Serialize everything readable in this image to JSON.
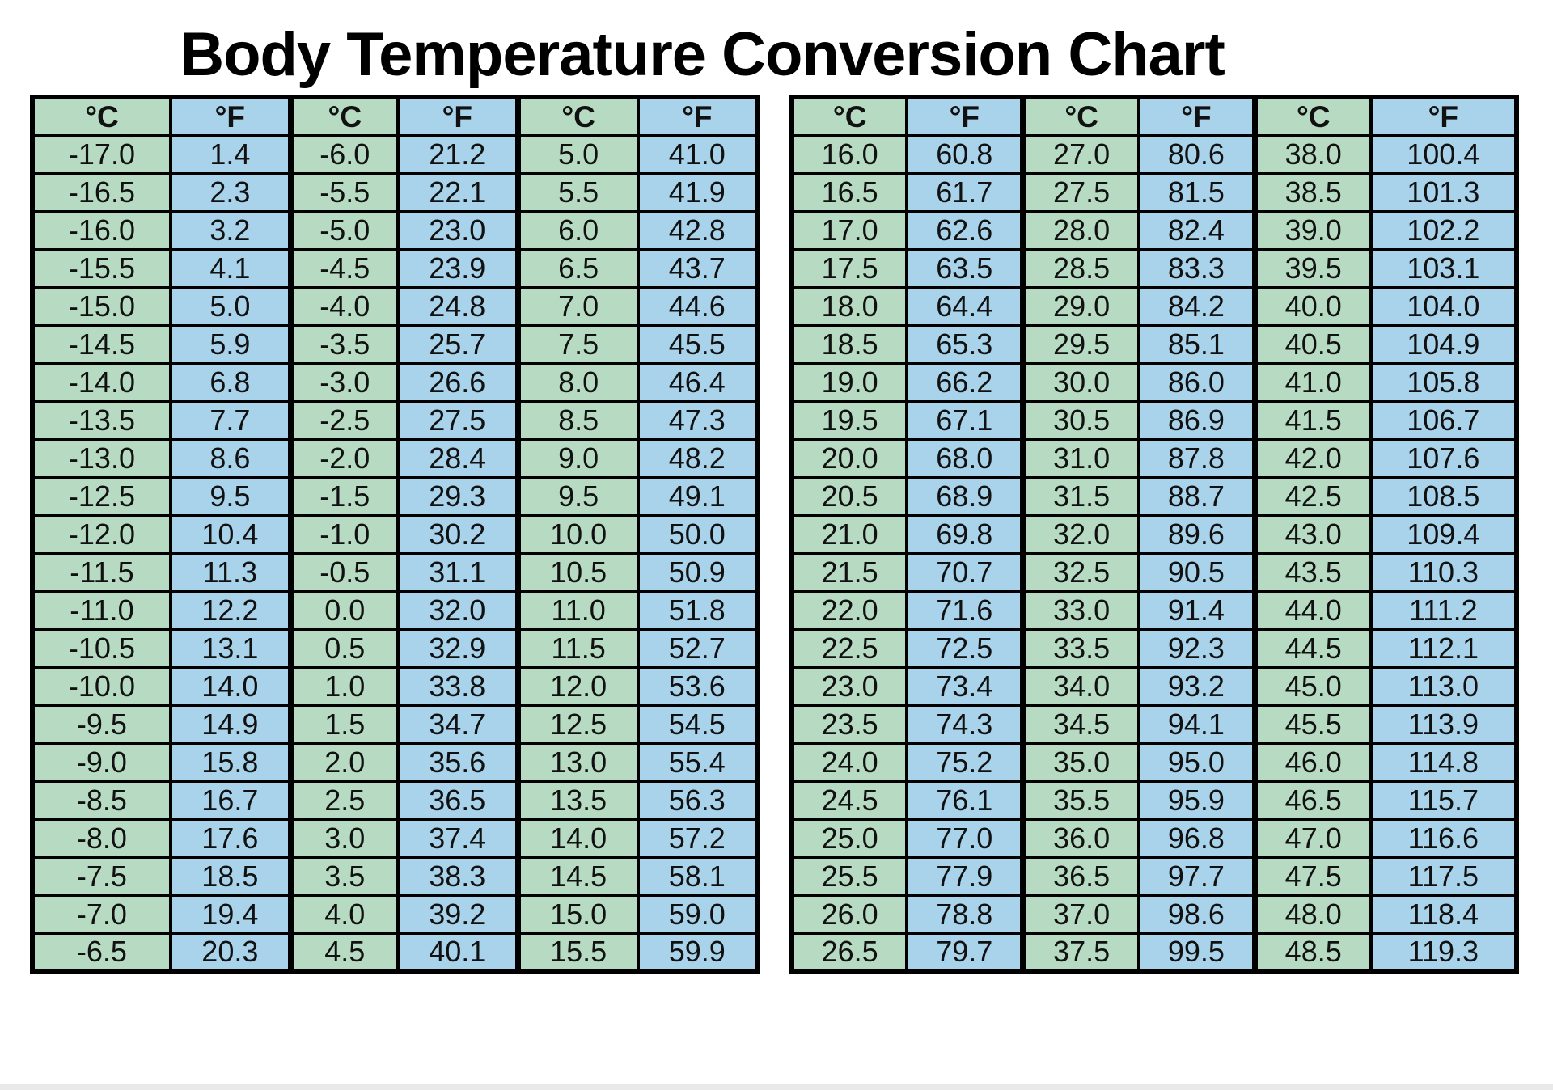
{
  "page": {
    "title": "Body Temperature Conversion Chart"
  },
  "colors": {
    "celsius_bg": "#b7dbc2",
    "fahrenheit_bg": "#a8d3ea",
    "table_border": "#000000",
    "cell_text": "#111111",
    "title_text": "#000000",
    "page_bg": "#ffffff",
    "bottom_strip": "#e9e9e9"
  },
  "chart_data": {
    "type": "table",
    "title": "Body Temperature Conversion Chart",
    "column_headers": [
      "°C",
      "°F",
      "°C",
      "°F",
      "°C",
      "°F"
    ],
    "tables": [
      {
        "name": "left-table",
        "rows": [
          [
            "-17.0",
            "1.4",
            "-6.0",
            "21.2",
            "5.0",
            "41.0"
          ],
          [
            "-16.5",
            "2.3",
            "-5.5",
            "22.1",
            "5.5",
            "41.9"
          ],
          [
            "-16.0",
            "3.2",
            "-5.0",
            "23.0",
            "6.0",
            "42.8"
          ],
          [
            "-15.5",
            "4.1",
            "-4.5",
            "23.9",
            "6.5",
            "43.7"
          ],
          [
            "-15.0",
            "5.0",
            "-4.0",
            "24.8",
            "7.0",
            "44.6"
          ],
          [
            "-14.5",
            "5.9",
            "-3.5",
            "25.7",
            "7.5",
            "45.5"
          ],
          [
            "-14.0",
            "6.8",
            "-3.0",
            "26.6",
            "8.0",
            "46.4"
          ],
          [
            "-13.5",
            "7.7",
            "-2.5",
            "27.5",
            "8.5",
            "47.3"
          ],
          [
            "-13.0",
            "8.6",
            "-2.0",
            "28.4",
            "9.0",
            "48.2"
          ],
          [
            "-12.5",
            "9.5",
            "-1.5",
            "29.3",
            "9.5",
            "49.1"
          ],
          [
            "-12.0",
            "10.4",
            "-1.0",
            "30.2",
            "10.0",
            "50.0"
          ],
          [
            "-11.5",
            "11.3",
            "-0.5",
            "31.1",
            "10.5",
            "50.9"
          ],
          [
            "-11.0",
            "12.2",
            "0.0",
            "32.0",
            "11.0",
            "51.8"
          ],
          [
            "-10.5",
            "13.1",
            "0.5",
            "32.9",
            "11.5",
            "52.7"
          ],
          [
            "-10.0",
            "14.0",
            "1.0",
            "33.8",
            "12.0",
            "53.6"
          ],
          [
            "-9.5",
            "14.9",
            "1.5",
            "34.7",
            "12.5",
            "54.5"
          ],
          [
            "-9.0",
            "15.8",
            "2.0",
            "35.6",
            "13.0",
            "55.4"
          ],
          [
            "-8.5",
            "16.7",
            "2.5",
            "36.5",
            "13.5",
            "56.3"
          ],
          [
            "-8.0",
            "17.6",
            "3.0",
            "37.4",
            "14.0",
            "57.2"
          ],
          [
            "-7.5",
            "18.5",
            "3.5",
            "38.3",
            "14.5",
            "58.1"
          ],
          [
            "-7.0",
            "19.4",
            "4.0",
            "39.2",
            "15.0",
            "59.0"
          ],
          [
            "-6.5",
            "20.3",
            "4.5",
            "40.1",
            "15.5",
            "59.9"
          ]
        ]
      },
      {
        "name": "right-table",
        "rows": [
          [
            "16.0",
            "60.8",
            "27.0",
            "80.6",
            "38.0",
            "100.4"
          ],
          [
            "16.5",
            "61.7",
            "27.5",
            "81.5",
            "38.5",
            "101.3"
          ],
          [
            "17.0",
            "62.6",
            "28.0",
            "82.4",
            "39.0",
            "102.2"
          ],
          [
            "17.5",
            "63.5",
            "28.5",
            "83.3",
            "39.5",
            "103.1"
          ],
          [
            "18.0",
            "64.4",
            "29.0",
            "84.2",
            "40.0",
            "104.0"
          ],
          [
            "18.5",
            "65.3",
            "29.5",
            "85.1",
            "40.5",
            "104.9"
          ],
          [
            "19.0",
            "66.2",
            "30.0",
            "86.0",
            "41.0",
            "105.8"
          ],
          [
            "19.5",
            "67.1",
            "30.5",
            "86.9",
            "41.5",
            "106.7"
          ],
          [
            "20.0",
            "68.0",
            "31.0",
            "87.8",
            "42.0",
            "107.6"
          ],
          [
            "20.5",
            "68.9",
            "31.5",
            "88.7",
            "42.5",
            "108.5"
          ],
          [
            "21.0",
            "69.8",
            "32.0",
            "89.6",
            "43.0",
            "109.4"
          ],
          [
            "21.5",
            "70.7",
            "32.5",
            "90.5",
            "43.5",
            "110.3"
          ],
          [
            "22.0",
            "71.6",
            "33.0",
            "91.4",
            "44.0",
            "111.2"
          ],
          [
            "22.5",
            "72.5",
            "33.5",
            "92.3",
            "44.5",
            "112.1"
          ],
          [
            "23.0",
            "73.4",
            "34.0",
            "93.2",
            "45.0",
            "113.0"
          ],
          [
            "23.5",
            "74.3",
            "34.5",
            "94.1",
            "45.5",
            "113.9"
          ],
          [
            "24.0",
            "75.2",
            "35.0",
            "95.0",
            "46.0",
            "114.8"
          ],
          [
            "24.5",
            "76.1",
            "35.5",
            "95.9",
            "46.5",
            "115.7"
          ],
          [
            "25.0",
            "77.0",
            "36.0",
            "96.8",
            "47.0",
            "116.6"
          ],
          [
            "25.5",
            "77.9",
            "36.5",
            "97.7",
            "47.5",
            "117.5"
          ],
          [
            "26.0",
            "78.8",
            "37.0",
            "98.6",
            "48.0",
            "118.4"
          ],
          [
            "26.5",
            "79.7",
            "37.5",
            "99.5",
            "48.5",
            "119.3"
          ]
        ]
      }
    ]
  }
}
